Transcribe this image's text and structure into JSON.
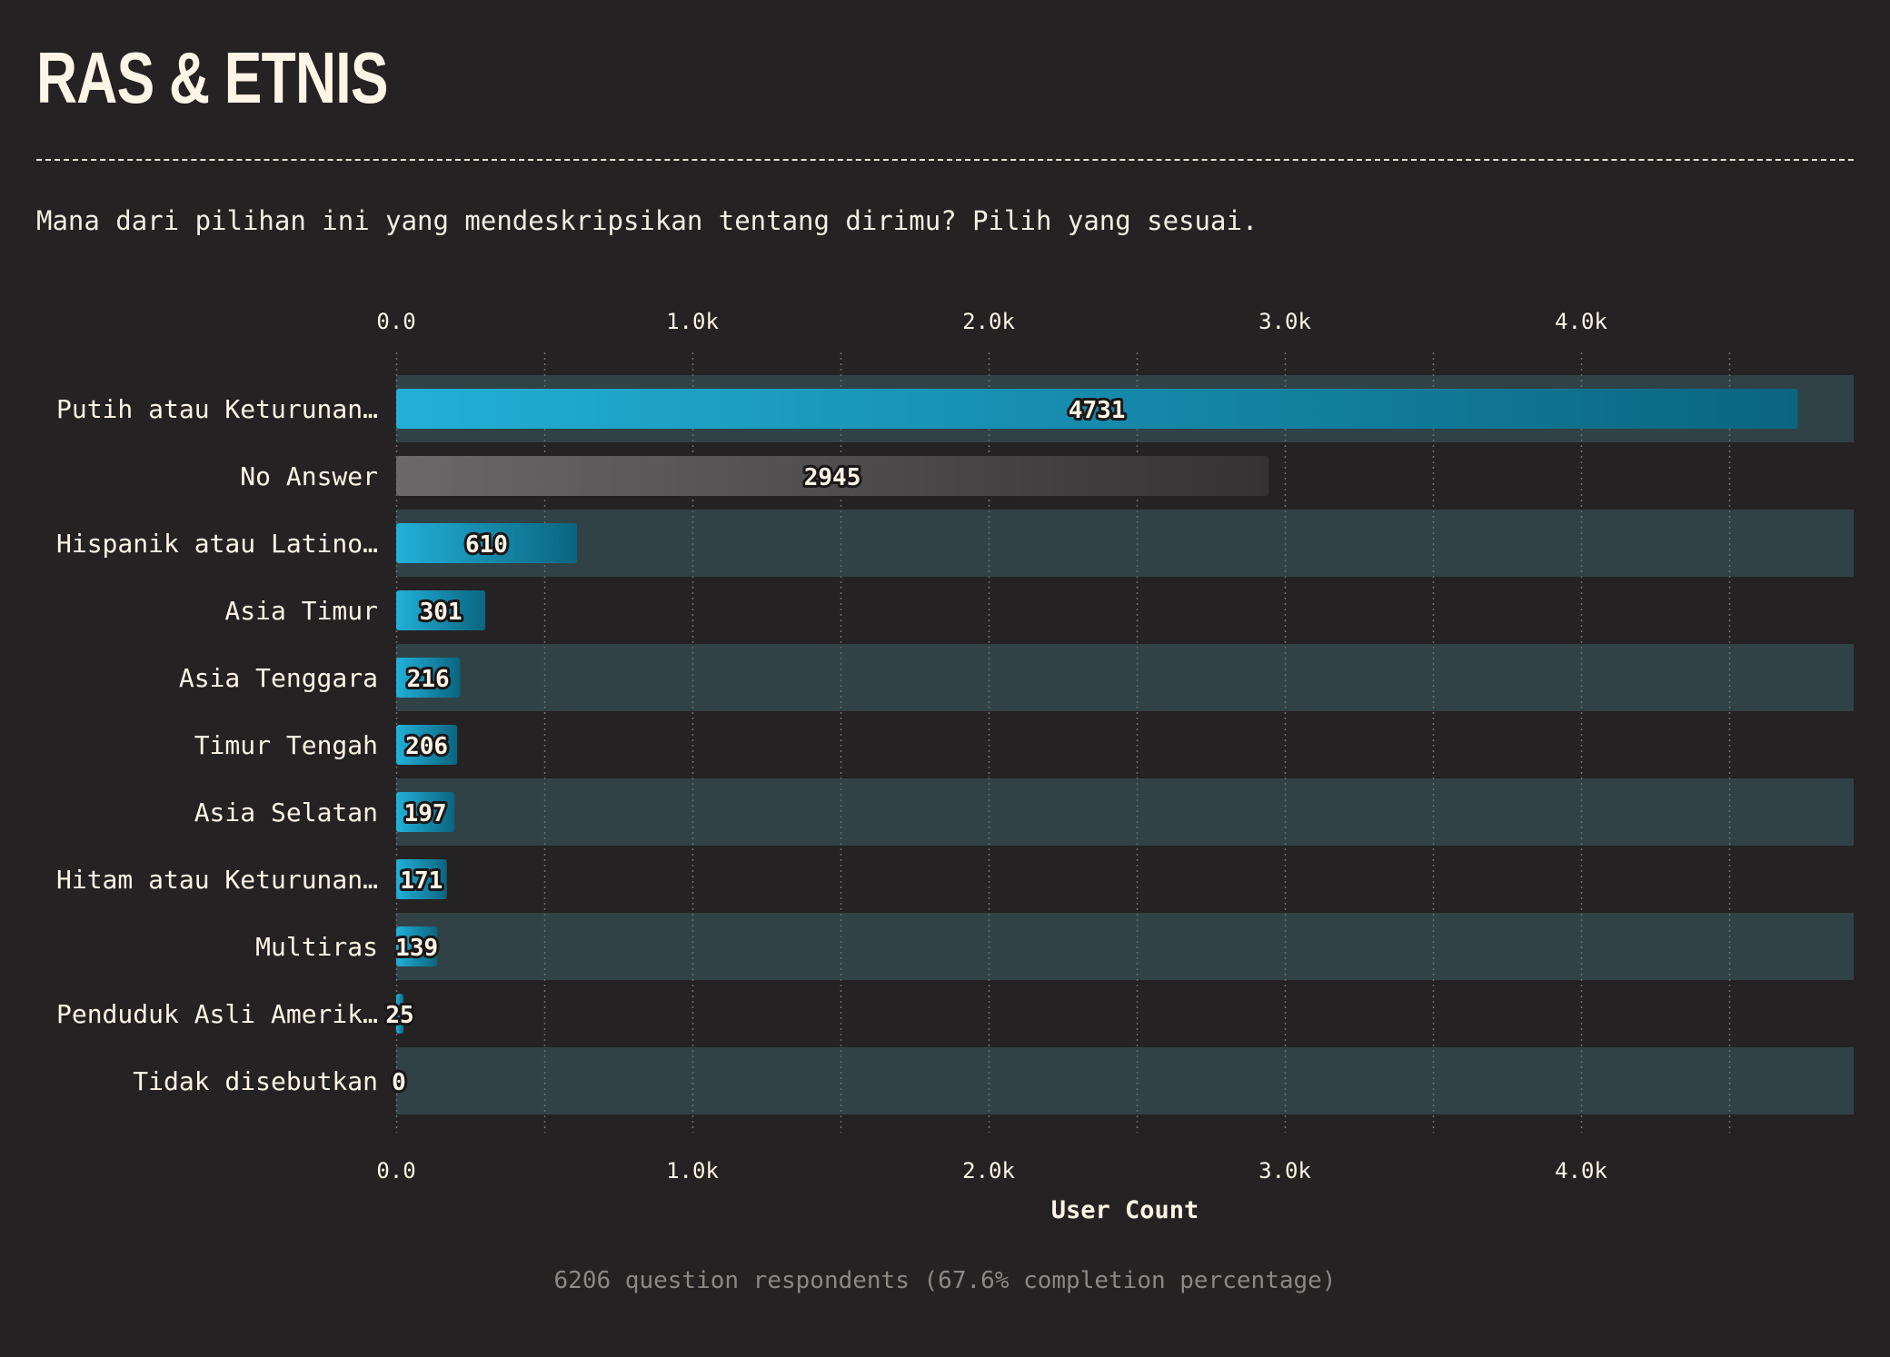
{
  "page": {
    "title": "RAS & ETNIS",
    "question": "Mana dari pilihan ini yang mendeskripsikan tentang dirimu? Pilih yang sesuai.",
    "footer": "6206 question respondents (67.6% completion percentage)"
  },
  "colors": {
    "background": "#252223",
    "band": "#314246",
    "bar_start": "#22b0d8",
    "bar_end": "#0a6580",
    "no_answer_start": "#6a6868",
    "no_answer_end": "#353234",
    "text": "#fff5e6",
    "grid": "#6e6a68"
  },
  "chart_data": {
    "type": "bar",
    "orientation": "horizontal",
    "categories": [
      "Putih atau Keturunan…",
      "No Answer",
      "Hispanik atau Latino…",
      "Asia Timur",
      "Asia Tenggara",
      "Timur Tengah",
      "Asia Selatan",
      "Hitam atau Keturunan…",
      "Multiras",
      "Penduduk Asli Amerik…",
      "Tidak disebutkan"
    ],
    "values": [
      4731,
      2945,
      610,
      301,
      216,
      206,
      197,
      171,
      139,
      25,
      0
    ],
    "xlabel": "User Count",
    "ylabel": "",
    "xlim": [
      0,
      4920
    ],
    "x_ticks": [
      0,
      1000,
      2000,
      3000,
      4000
    ],
    "x_tick_labels": [
      "0.0",
      "1.0k",
      "2.0k",
      "3.0k",
      "4.0k"
    ],
    "x_minor_ticks": [
      500,
      1500,
      2500,
      3500,
      4500
    ],
    "grid": true,
    "tick_labels_top": true,
    "tick_labels_bottom": true,
    "alternating_row_bands": true,
    "highlight_gray_category": "No Answer",
    "data_labels": true
  }
}
